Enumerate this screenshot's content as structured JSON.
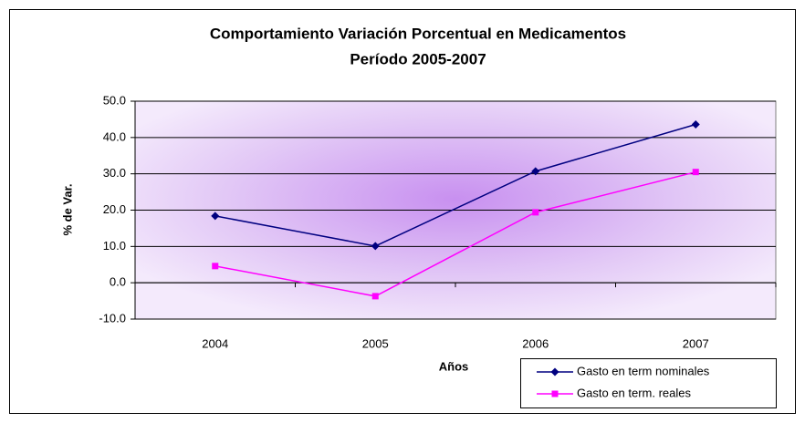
{
  "chart_data": {
    "type": "line",
    "title": "Comportamiento Variación Porcentual en Medicamentos",
    "subtitle": "Período 2005-2007",
    "x_label": "Años",
    "y_label": "% de Var.",
    "categories": [
      "2004",
      "2005",
      "2006",
      "2007"
    ],
    "series": [
      {
        "name": "Gasto en term nominales",
        "color": "#000080",
        "marker": "diamond",
        "values": [
          18.4,
          10.1,
          30.7,
          43.6
        ]
      },
      {
        "name": "Gasto en term. reales",
        "color": "#ff00ff",
        "marker": "square",
        "values": [
          4.6,
          -3.7,
          19.4,
          30.5
        ]
      }
    ],
    "ylim": [
      -10,
      50
    ],
    "yticks": [
      {
        "value": -10,
        "label": "-10.0"
      },
      {
        "value": 0,
        "label": "0.0"
      },
      {
        "value": 10,
        "label": "10.0"
      },
      {
        "value": 20,
        "label": "20.0"
      },
      {
        "value": 30,
        "label": "30.0"
      },
      {
        "value": 40,
        "label": "40.0"
      },
      {
        "value": 50,
        "label": "50.0"
      }
    ],
    "grid": true,
    "legend": "bottom-right"
  }
}
